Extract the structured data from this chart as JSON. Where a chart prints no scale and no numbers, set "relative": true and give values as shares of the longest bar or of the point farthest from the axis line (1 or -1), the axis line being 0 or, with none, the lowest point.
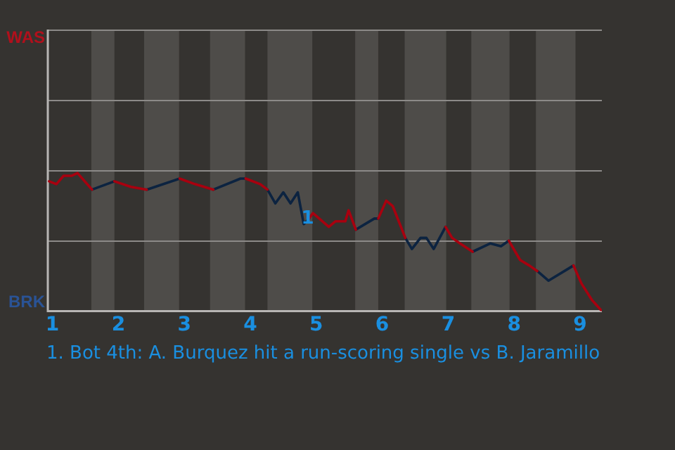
{
  "chart_data": {
    "type": "line",
    "relative": true,
    "series": [
      {
        "color": "#a8000f",
        "x": [
          0.95,
          1.06,
          1.17,
          1.29,
          1.38,
          1.6,
          1.77,
          1.94,
          2.19,
          2.43,
          2.68,
          2.93,
          3.16,
          3.44,
          3.68,
          3.93,
          4.15,
          4.26,
          4.58,
          4.89,
          4.95,
          5.19,
          5.29,
          5.44,
          5.49,
          5.6,
          5.77,
          5.94,
          6.06,
          6.16,
          6.35,
          6.65,
          6.96,
          7.06,
          7.18,
          7.37,
          7.65,
          7.92,
          8.09,
          8.23,
          8.35,
          8.62,
          8.9,
          9.02,
          9.18,
          9.33
        ],
        "values": [
          0.94,
          0.92,
          0.98,
          0.98,
          1,
          0.88,
          null,
          0.94,
          0.9,
          0.88,
          null,
          0.96,
          0.92,
          0.88,
          null,
          0.96,
          0.92,
          0.88,
          null,
          0.67,
          0.71,
          0.61,
          0.65,
          0.65,
          0.73,
          0.59,
          null,
          0.67,
          0.8,
          0.76,
          0.53,
          null,
          0.61,
          0.53,
          0.49,
          0.43,
          null,
          0.51,
          0.37,
          0.33,
          0.29,
          null,
          0.33,
          0.2,
          0.08,
          0
        ]
      },
      {
        "color": "#0c2340",
        "x": [
          1.6,
          1.94,
          2.19,
          2.43,
          2.93,
          3.16,
          3.44,
          3.85,
          3.93,
          4.1,
          4.26,
          4.38,
          4.5,
          4.61,
          4.72,
          4.81,
          4.89,
          5.2,
          5.6,
          5.88,
          5.94,
          6.15,
          6.35,
          6.45,
          6.58,
          6.67,
          6.78,
          6.96,
          7.2,
          7.37,
          7.64,
          7.8,
          7.92,
          8.1,
          8.35,
          8.52,
          8.9
        ],
        "values": [
          0.88,
          0.94,
          null,
          0.88,
          0.96,
          null,
          0.88,
          0.96,
          0.96,
          null,
          0.88,
          0.78,
          0.86,
          0.78,
          0.86,
          0.63,
          0.67,
          null,
          0.59,
          0.67,
          0.67,
          null,
          0.53,
          0.45,
          0.53,
          0.53,
          0.45,
          0.61,
          null,
          0.43,
          0.49,
          0.47,
          0.51,
          null,
          0.29,
          0.22,
          0.33
        ]
      }
    ],
    "xlim": [
      0.93,
      9.33
    ],
    "xticks": [
      1,
      2,
      3,
      4,
      5,
      6,
      7,
      8,
      9
    ],
    "marker": "none",
    "line_style": "solid",
    "ref_lines": [
      {
        "axis": "y",
        "value": 0.51,
        "color": "#8c8a88"
      },
      {
        "axis": "y",
        "value": 1.02,
        "color": "#8c8a88"
      },
      {
        "axis": "y",
        "value": 1.53,
        "color": "#8c8a88"
      },
      {
        "axis": "y",
        "value": 2.04,
        "color": "#8c8a88"
      }
    ],
    "bands": [
      {
        "axis": "x",
        "from": 1.59,
        "to": 1.94,
        "color": "#4e4c49"
      },
      {
        "axis": "x",
        "from": 2.39,
        "to": 2.92,
        "color": "#4e4c49"
      },
      {
        "axis": "x",
        "from": 3.39,
        "to": 3.92,
        "color": "#4e4c49"
      },
      {
        "axis": "x",
        "from": 4.26,
        "to": 4.94,
        "color": "#4e4c49"
      },
      {
        "axis": "x",
        "from": 5.59,
        "to": 5.94,
        "color": "#4e4c49"
      },
      {
        "axis": "x",
        "from": 6.34,
        "to": 6.97,
        "color": "#4e4c49"
      },
      {
        "axis": "x",
        "from": 7.35,
        "to": 7.93,
        "color": "#4e4c49"
      },
      {
        "axis": "x",
        "from": 8.33,
        "to": 8.93,
        "color": "#4e4c49"
      }
    ],
    "annotations": [
      "WAS",
      "BRK",
      {
        "text": "1",
        "x": 4.87,
        "y": 0.67
      },
      "1. Bot 4th: A. Burquez hit a run-scoring single vs B. Jaramillo"
    ]
  }
}
